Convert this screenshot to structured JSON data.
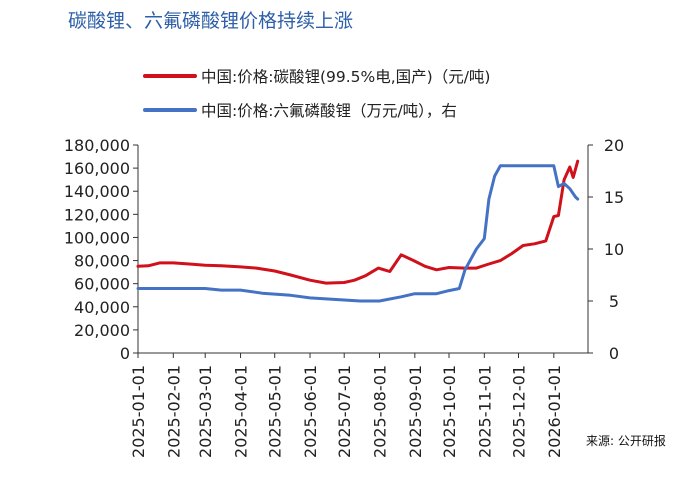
{
  "title": "碳酸锂、六氟磷酸锂价格持续上涨",
  "source": "来源: 公开研报",
  "colors": {
    "title": "#2E5FA8",
    "red": "#D0101B",
    "blue": "#4472C4",
    "axis": "#333333"
  },
  "chart_data": {
    "type": "line",
    "title": "碳酸锂、六氟磷酸锂价格持续上涨",
    "x_tick_labels": [
      "2025-01-01",
      "2025-02-01",
      "2025-03-01",
      "2025-04-01",
      "2025-05-01",
      "2025-06-01",
      "2025-07-01",
      "2025-08-01",
      "2025-09-01",
      "2025-10-01",
      "2025-11-01",
      "2025-12-01",
      "2026-01-01"
    ],
    "y_left": {
      "ylim": [
        0,
        180000
      ],
      "ticks": [
        "0",
        "20,000",
        "40,000",
        "60,000",
        "80,000",
        "100,000",
        "120,000",
        "140,000",
        "160,000",
        "180,000"
      ]
    },
    "y_right": {
      "ylim": [
        0,
        20
      ],
      "ticks": [
        "0",
        "5",
        "10",
        "15",
        "20"
      ]
    },
    "legend_placement": "top",
    "grid": false,
    "series": [
      {
        "name": "中国:价格:碳酸锂(99.5%电,国产)（元/吨)",
        "axis": "left",
        "color": "#D0101B",
        "points": [
          [
            "2025-01-01",
            75000
          ],
          [
            "2025-01-10",
            75500
          ],
          [
            "2025-01-20",
            78000
          ],
          [
            "2025-02-01",
            78000
          ],
          [
            "2025-02-15",
            77000
          ],
          [
            "2025-03-01",
            76000
          ],
          [
            "2025-03-15",
            75500
          ],
          [
            "2025-04-01",
            74500
          ],
          [
            "2025-04-15",
            73500
          ],
          [
            "2025-05-01",
            71000
          ],
          [
            "2025-05-15",
            67500
          ],
          [
            "2025-06-01",
            63000
          ],
          [
            "2025-06-15",
            60500
          ],
          [
            "2025-07-01",
            61000
          ],
          [
            "2025-07-10",
            63000
          ],
          [
            "2025-07-20",
            67000
          ],
          [
            "2025-07-31",
            73500
          ],
          [
            "2025-08-10",
            70500
          ],
          [
            "2025-08-20",
            85000
          ],
          [
            "2025-08-31",
            80000
          ],
          [
            "2025-09-10",
            75000
          ],
          [
            "2025-09-20",
            72000
          ],
          [
            "2025-10-01",
            74000
          ],
          [
            "2025-10-15",
            73500
          ],
          [
            "2025-10-25",
            73500
          ],
          [
            "2025-11-05",
            77000
          ],
          [
            "2025-11-15",
            80000
          ],
          [
            "2025-11-25",
            86000
          ],
          [
            "2025-12-05",
            93000
          ],
          [
            "2025-12-15",
            94500
          ],
          [
            "2025-12-25",
            97000
          ],
          [
            "2026-01-01",
            118000
          ],
          [
            "2026-01-05",
            119000
          ],
          [
            "2026-01-10",
            150000
          ],
          [
            "2026-01-15",
            161000
          ],
          [
            "2026-01-18",
            152000
          ],
          [
            "2026-01-22",
            166000
          ]
        ]
      },
      {
        "name": "中国:价格:六氟磷酸锂（万元/吨），右",
        "axis": "right",
        "color": "#4472C4",
        "points": [
          [
            "2025-01-01",
            6.2
          ],
          [
            "2025-02-01",
            6.2
          ],
          [
            "2025-03-01",
            6.2
          ],
          [
            "2025-03-15",
            6.05
          ],
          [
            "2025-04-01",
            6.05
          ],
          [
            "2025-04-20",
            5.75
          ],
          [
            "2025-05-15",
            5.55
          ],
          [
            "2025-06-01",
            5.3
          ],
          [
            "2025-06-15",
            5.2
          ],
          [
            "2025-07-01",
            5.1
          ],
          [
            "2025-07-15",
            5.0
          ],
          [
            "2025-08-01",
            5.0
          ],
          [
            "2025-08-20",
            5.4
          ],
          [
            "2025-09-01",
            5.7
          ],
          [
            "2025-09-20",
            5.7
          ],
          [
            "2025-10-01",
            6.0
          ],
          [
            "2025-10-10",
            6.2
          ],
          [
            "2025-10-15",
            8.0
          ],
          [
            "2025-10-25",
            10.0
          ],
          [
            "2025-11-01",
            11.0
          ],
          [
            "2025-11-05",
            14.8
          ],
          [
            "2025-11-10",
            17.0
          ],
          [
            "2025-11-15",
            18.0
          ],
          [
            "2026-01-01",
            18.0
          ],
          [
            "2026-01-05",
            16.0
          ],
          [
            "2026-01-10",
            16.3
          ],
          [
            "2026-01-15",
            15.8
          ],
          [
            "2026-01-20",
            15.0
          ],
          [
            "2026-01-22",
            14.8
          ]
        ]
      }
    ]
  }
}
